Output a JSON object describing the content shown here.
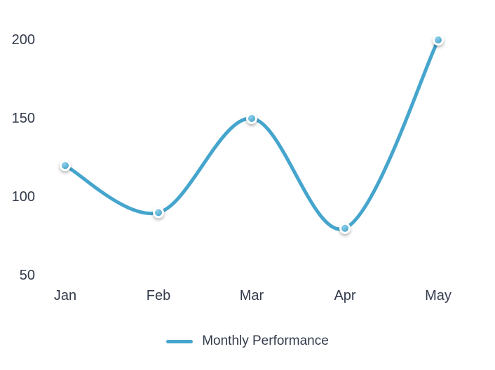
{
  "chart_data": {
    "type": "line",
    "categories": [
      "Jan",
      "Feb",
      "Mar",
      "Apr",
      "May"
    ],
    "series": [
      {
        "name": "Monthly Performance",
        "values": [
          120,
          90,
          150,
          80,
          200
        ]
      }
    ],
    "title": "",
    "xlabel": "",
    "ylabel": "",
    "ylim": [
      50,
      200
    ],
    "yticks": [
      50,
      100,
      150,
      200
    ],
    "grid": false,
    "legend_position": "bottom",
    "smooth": true,
    "line_color": "#45a5cd",
    "marker_fill": "#3e9cc6",
    "marker_highlight": "#8ed1ea",
    "marker_ring": "#ffffff",
    "text_color": "#333b4b"
  }
}
